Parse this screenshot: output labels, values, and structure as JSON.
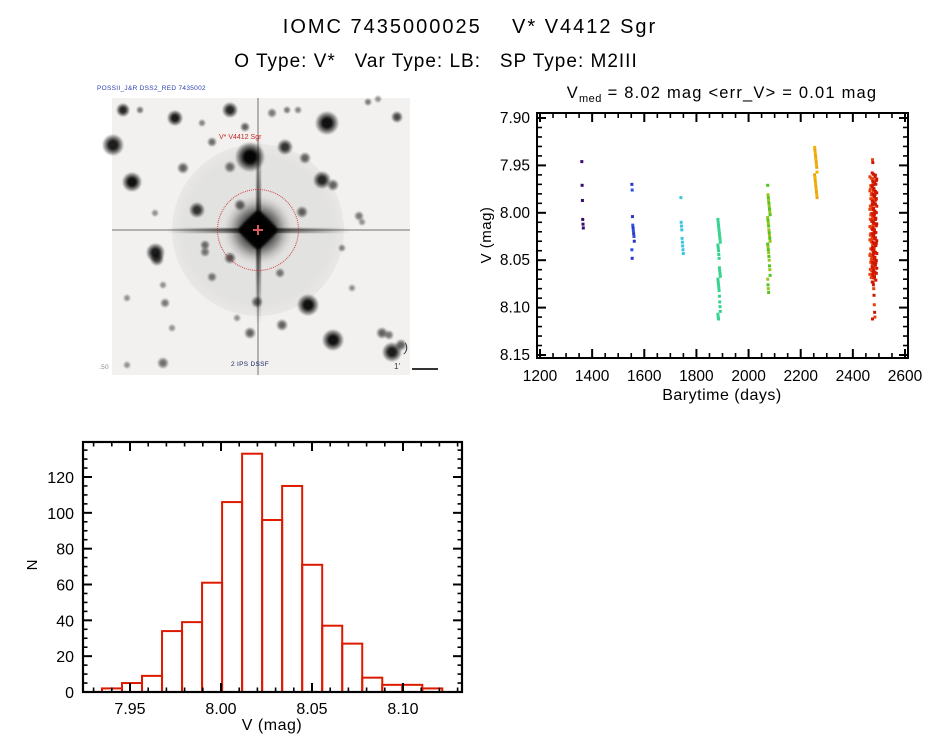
{
  "page": {
    "title_line1": "IOMC 7435000025    V* V4412 Sgr",
    "title_line2": "O Type: V*   Var Type: LB:   SP Type: M2III"
  },
  "finding_chart": {
    "survey_text": "POSSII_J&R DSS2_RED 7435002",
    "target_label": "V* V4412 Sgr",
    "bottom_text": "2 IPS DSSF",
    "corner_text": ".50",
    "paren_mark": ")",
    "scale_label": "1'",
    "circle_color": "#cf2a2a",
    "stars": [
      [
        11,
        12,
        7,
        0.85
      ],
      [
        28,
        12,
        4,
        0.5
      ],
      [
        63,
        20,
        8,
        0.9
      ],
      [
        118,
        12,
        8,
        0.85
      ],
      [
        133,
        29,
        5,
        0.6
      ],
      [
        175,
        12,
        4,
        0.5
      ],
      [
        186,
        12,
        4,
        0.45
      ],
      [
        215,
        25,
        13,
        0.95
      ],
      [
        256,
        4,
        4,
        0.5
      ],
      [
        266,
        1,
        4,
        0.4
      ],
      [
        285,
        19,
        6,
        0.7
      ],
      [
        1,
        47,
        12,
        0.9
      ],
      [
        100,
        44,
        5,
        0.55
      ],
      [
        138,
        59,
        16,
        1
      ],
      [
        173,
        49,
        8,
        0.8
      ],
      [
        193,
        60,
        6,
        0.6
      ],
      [
        20,
        84,
        11,
        0.95
      ],
      [
        71,
        70,
        6,
        0.6
      ],
      [
        118,
        69,
        6,
        0.55
      ],
      [
        210,
        82,
        9,
        0.85
      ],
      [
        221,
        87,
        6,
        0.6
      ],
      [
        43,
        115,
        4,
        0.4
      ],
      [
        85,
        112,
        8,
        0.8
      ],
      [
        128,
        107,
        6,
        0.6
      ],
      [
        190,
        114,
        6,
        0.6
      ],
      [
        250,
        124,
        4,
        0.4
      ],
      [
        43,
        154,
        10,
        0.9
      ],
      [
        45,
        161,
        7,
        0.7
      ],
      [
        93,
        147,
        5,
        0.55
      ],
      [
        93,
        154,
        5,
        0.5
      ],
      [
        118,
        160,
        6,
        0.65
      ],
      [
        168,
        175,
        5,
        0.5
      ],
      [
        100,
        179,
        5,
        0.5
      ],
      [
        51,
        187,
        4,
        0.4
      ],
      [
        15,
        200,
        4,
        0.4
      ],
      [
        53,
        205,
        5,
        0.5
      ],
      [
        145,
        204,
        6,
        0.6
      ],
      [
        196,
        207,
        12,
        0.95
      ],
      [
        125,
        220,
        4,
        0.4
      ],
      [
        170,
        227,
        6,
        0.6
      ],
      [
        138,
        235,
        6,
        0.6
      ],
      [
        221,
        242,
        12,
        0.95
      ],
      [
        270,
        235,
        6,
        0.6
      ],
      [
        277,
        237,
        5,
        0.5
      ],
      [
        280,
        254,
        11,
        0.9
      ],
      [
        15,
        267,
        4,
        0.4
      ],
      [
        51,
        265,
        6,
        0.55
      ],
      [
        289,
        247,
        6,
        0.6
      ],
      [
        247,
        118,
        5,
        0.5
      ],
      [
        160,
        15,
        5,
        0.5
      ],
      [
        90,
        25,
        4,
        0.45
      ],
      [
        230,
        150,
        4,
        0.45
      ],
      [
        60,
        230,
        4,
        0.4
      ],
      [
        240,
        190,
        4,
        0.4
      ]
    ]
  },
  "chart_data": [
    {
      "type": "scatter",
      "title": "Vmed = 8.02 mag <err_V> = 0.01 mag",
      "title_parts": {
        "pre": "V",
        "sub": "med",
        "rest": " = 8.02 mag <err_V> = 0.01 mag"
      },
      "xlabel": "Barytime (days)",
      "ylabel": "V (mag)",
      "xlim": [
        1188,
        2612
      ],
      "ylim": [
        8.153,
        7.895
      ],
      "y_inverted": true,
      "grid": false,
      "xticks": [
        1200,
        1400,
        1600,
        1800,
        2000,
        2200,
        2400,
        2600
      ],
      "yticks": [
        7.9,
        7.95,
        8.0,
        8.05,
        8.1,
        8.15
      ],
      "x_minor_step": 50,
      "y_minor_step": 0.01,
      "series": [
        {
          "name": "epoch-1365",
          "t": 1365,
          "colors": [
            "#390a70"
          ],
          "mags": [
            7.946,
            7.971,
            7.987,
            8.007,
            8.012,
            8.016
          ]
        },
        {
          "name": "epoch-1557",
          "t": 1557,
          "colors": [
            "#2a36c4",
            "#2e52e8"
          ],
          "mags": [
            7.97,
            7.976,
            8.004,
            8.013,
            8.016,
            8.019,
            8.022,
            8.025,
            8.03,
            8.039,
            8.048
          ]
        },
        {
          "name": "epoch-1745",
          "t": 1745,
          "colors": [
            "#3cc6de"
          ],
          "mags": [
            7.984,
            8.01,
            8.014,
            8.018,
            8.027,
            8.031,
            8.035,
            8.039,
            8.043
          ]
        },
        {
          "name": "epoch-1887",
          "t": 1887,
          "colors": [
            "#35d48e"
          ],
          "mags": [
            8.007,
            8.01,
            8.013,
            8.016,
            8.019,
            8.022,
            8.025,
            8.028,
            8.031,
            8.034,
            8.037,
            8.04,
            8.044,
            8.048,
            8.058,
            8.061,
            8.064,
            8.067,
            8.07,
            8.073,
            8.076,
            8.079,
            8.082,
            8.088,
            8.094,
            8.099,
            8.104,
            8.107,
            8.11,
            8.112
          ]
        },
        {
          "name": "epoch-2078",
          "t": 2078,
          "colors": [
            "#4ec61e",
            "#9cc41c"
          ],
          "mags": [
            7.971,
            7.981,
            7.984,
            7.987,
            7.99,
            7.993,
            7.996,
            7.999,
            8.002,
            8.005,
            8.008,
            8.011,
            8.014,
            8.018,
            8.021,
            8.024,
            8.027,
            8.03,
            8.033,
            8.036,
            8.039,
            8.042,
            8.046,
            8.05,
            8.056,
            8.06,
            8.066,
            8.07,
            8.076,
            8.08,
            8.084
          ]
        },
        {
          "name": "epoch-2258",
          "t": 2258,
          "colors": [
            "#f0b400",
            "#e8a414"
          ],
          "mags": [
            7.931,
            7.934,
            7.937,
            7.94,
            7.943,
            7.946,
            7.949,
            7.952,
            7.957,
            7.96,
            7.963,
            7.966,
            7.969,
            7.972,
            7.975,
            7.978,
            7.981,
            7.984
          ]
        },
        {
          "name": "epoch-2480",
          "t": 2480,
          "colors": [
            "#e8400e",
            "#cf1602"
          ],
          "mags": [
            7.944,
            7.947,
            8.073,
            8.076,
            8.08,
            8.087,
            8.097,
            8.105,
            8.11,
            8.112
          ],
          "bands": [
            {
              "t": 2474,
              "from": 7.962,
              "to": 8.068,
              "n": 70,
              "color": "#e8400e"
            },
            {
              "t": 2483,
              "from": 7.958,
              "to": 8.072,
              "n": 78,
              "color": "#cf1602"
            }
          ]
        }
      ]
    },
    {
      "type": "bar",
      "xlabel": "V (mag)",
      "ylabel": "N",
      "bin_start": 7.9346,
      "bin_width": 0.011,
      "values": [
        2,
        5,
        9,
        34,
        39,
        61,
        106,
        133,
        96,
        115,
        71,
        37,
        27,
        8,
        4,
        4,
        2
      ],
      "xlim": [
        7.924,
        8.133
      ],
      "ylim": [
        0,
        140
      ],
      "grid": false,
      "xticks": [
        7.95,
        8.0,
        8.05,
        8.1
      ],
      "yticks": [
        0,
        20,
        40,
        60,
        80,
        100,
        120
      ],
      "x_minor_step": 0.01,
      "y_minor_step": 5,
      "color": "#dd1a00"
    }
  ]
}
